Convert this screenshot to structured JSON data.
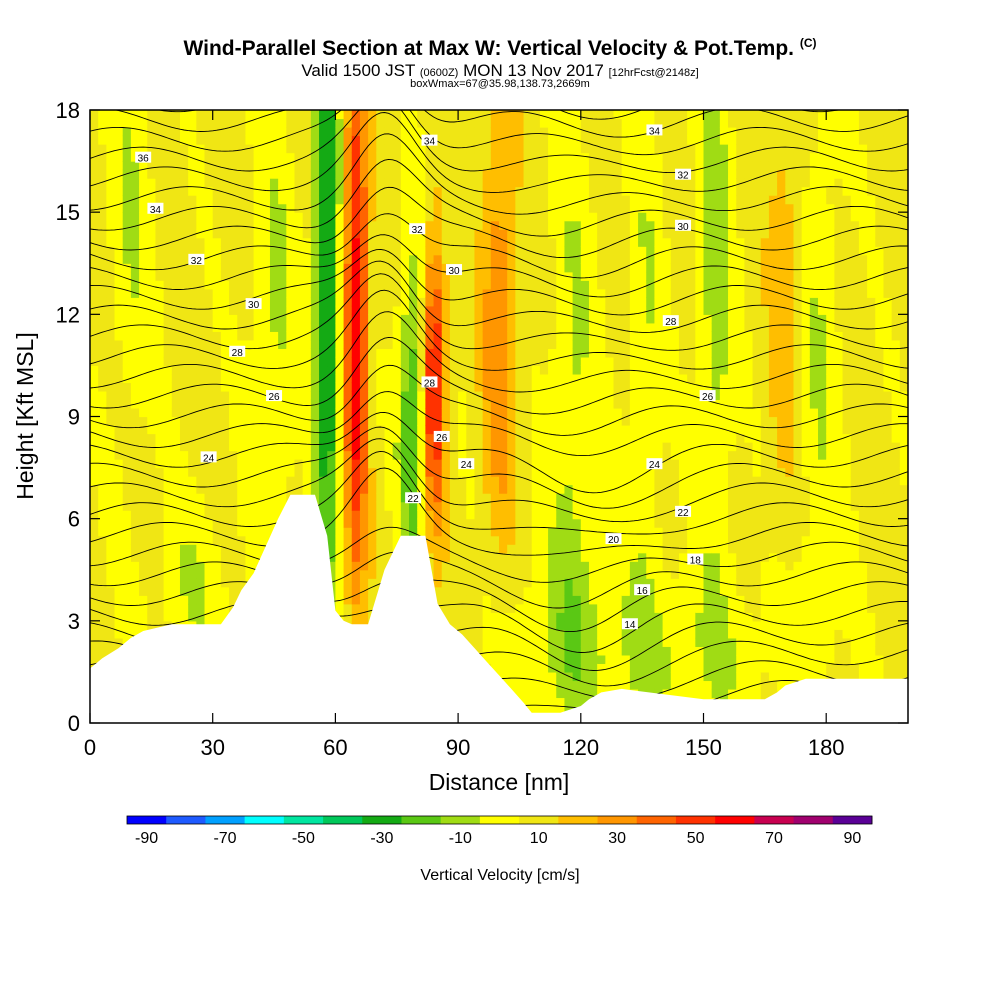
{
  "title": {
    "main": "Wind-Parallel Section at Max W: Vertical Velocity & Pot.Temp.",
    "copyright": "(C)",
    "valid_prefix": "Valid 1500 JST",
    "valid_utc": "(0600Z)",
    "valid_date": "MON 13 Nov 2017",
    "forecast": "[12hrFcst@2148z]",
    "box_info": "boxWmax=67@35.98,138.73,2669m"
  },
  "chart_data": {
    "type": "heatmap",
    "xlabel": "Distance [nm]",
    "ylabel": "Height [Kft MSL]",
    "xlim": [
      0,
      200
    ],
    "ylim": [
      0,
      18
    ],
    "x_ticks": [
      "0",
      "30",
      "60",
      "90",
      "120",
      "150",
      "180"
    ],
    "y_ticks": [
      "0",
      "3",
      "6",
      "9",
      "12",
      "15",
      "18"
    ],
    "colorbar": {
      "label": "Vertical Velocity [cm/s]",
      "tick_labels": [
        "-90",
        "-70",
        "-50",
        "-30",
        "-10",
        "10",
        "30",
        "50",
        "70",
        "90"
      ],
      "colors": [
        "#0000ff",
        "#1e5aff",
        "#00a0ff",
        "#00ffff",
        "#00e6a0",
        "#00c85a",
        "#14aa14",
        "#5ac814",
        "#a0dc14",
        "#ffff00",
        "#f0e614",
        "#ffbe00",
        "#ff9600",
        "#ff6400",
        "#ff3200",
        "#ff0000",
        "#c80050",
        "#a0006e",
        "#5a0096"
      ]
    },
    "terrain_profile": {
      "x": [
        0,
        3,
        7,
        10,
        13,
        20,
        24,
        32,
        35,
        37,
        40,
        43,
        46,
        49,
        55,
        58,
        60,
        62,
        64,
        68,
        72,
        76,
        82,
        85,
        88,
        91,
        94,
        97,
        100,
        103,
        106,
        108,
        113,
        115,
        120,
        122,
        125,
        130,
        150,
        155,
        160,
        165,
        168,
        170,
        175,
        180,
        185,
        190,
        200
      ],
      "height_kft": [
        1.6,
        1.9,
        2.2,
        2.5,
        2.7,
        2.9,
        2.9,
        2.9,
        3.4,
        3.9,
        4.4,
        5.2,
        6.0,
        6.7,
        6.7,
        5.5,
        3.3,
        3.0,
        2.9,
        2.9,
        4.5,
        5.5,
        5.5,
        3.5,
        2.9,
        2.6,
        2.2,
        1.8,
        1.4,
        1.0,
        0.6,
        0.3,
        0.3,
        0.3,
        0.5,
        0.7,
        0.9,
        1.0,
        0.7,
        0.7,
        0.7,
        0.7,
        0.9,
        1.1,
        1.3,
        1.3,
        1.3,
        1.3,
        1.3
      ]
    },
    "w_features": [
      {
        "x": 58,
        "y": 13,
        "sx": 2.2,
        "sy": 7,
        "w": -45
      },
      {
        "x": 79,
        "y": 9,
        "sx": 2.5,
        "sy": 3.5,
        "w": -35
      },
      {
        "x": 65,
        "y": 12,
        "sx": 2.0,
        "sy": 6,
        "w": 55
      },
      {
        "x": 84,
        "y": 10,
        "sx": 2.0,
        "sy": 3,
        "w": 55
      },
      {
        "x": 45,
        "y": 11,
        "sx": 4,
        "sy": 5,
        "w": -15
      },
      {
        "x": 153,
        "y": 13,
        "sx": 3,
        "sy": 6,
        "w": -20
      },
      {
        "x": 118,
        "y": 9,
        "sx": 4,
        "sy": 6,
        "w": -15
      },
      {
        "x": 136,
        "y": 11,
        "sx": 3,
        "sy": 6,
        "w": -12
      },
      {
        "x": 178,
        "y": 10,
        "sx": 4,
        "sy": 7,
        "w": -12
      },
      {
        "x": 10,
        "y": 15,
        "sx": 4,
        "sy": 5,
        "w": -12
      },
      {
        "x": 25,
        "y": 4,
        "sx": 7,
        "sy": 1.8,
        "w": -12
      },
      {
        "x": 145,
        "y": 2,
        "sx": 20,
        "sy": 1.8,
        "w": -12
      },
      {
        "x": 115,
        "y": 2.5,
        "sx": 12,
        "sy": 2,
        "w": -10
      },
      {
        "x": 100,
        "y": 12,
        "sx": 3,
        "sy": 5,
        "w": 25
      },
      {
        "x": 170,
        "y": 13,
        "sx": 3,
        "sy": 5,
        "w": 15
      }
    ],
    "theta_labels": [
      {
        "x": 13,
        "y": 16.6,
        "text": "36"
      },
      {
        "x": 16,
        "y": 15.1,
        "text": "34"
      },
      {
        "x": 26,
        "y": 13.6,
        "text": "32"
      },
      {
        "x": 40,
        "y": 12.3,
        "text": "30"
      },
      {
        "x": 36,
        "y": 10.9,
        "text": "28"
      },
      {
        "x": 45,
        "y": 9.6,
        "text": "26"
      },
      {
        "x": 29,
        "y": 7.8,
        "text": "24"
      },
      {
        "x": 83,
        "y": 17.1,
        "text": "34"
      },
      {
        "x": 80,
        "y": 14.5,
        "text": "32"
      },
      {
        "x": 89,
        "y": 13.3,
        "text": "30"
      },
      {
        "x": 83,
        "y": 10.0,
        "text": "28"
      },
      {
        "x": 86,
        "y": 8.4,
        "text": "26"
      },
      {
        "x": 92,
        "y": 7.6,
        "text": "24"
      },
      {
        "x": 79,
        "y": 6.6,
        "text": "22"
      },
      {
        "x": 138,
        "y": 17.4,
        "text": "34"
      },
      {
        "x": 145,
        "y": 16.1,
        "text": "32"
      },
      {
        "x": 145,
        "y": 14.6,
        "text": "30"
      },
      {
        "x": 142,
        "y": 11.8,
        "text": "28"
      },
      {
        "x": 151,
        "y": 9.6,
        "text": "26"
      },
      {
        "x": 138,
        "y": 7.6,
        "text": "24"
      },
      {
        "x": 145,
        "y": 6.2,
        "text": "22"
      },
      {
        "x": 128,
        "y": 5.4,
        "text": "20"
      },
      {
        "x": 148,
        "y": 4.8,
        "text": "18"
      },
      {
        "x": 135,
        "y": 3.9,
        "text": "16"
      },
      {
        "x": 132,
        "y": 2.9,
        "text": "14"
      }
    ]
  }
}
